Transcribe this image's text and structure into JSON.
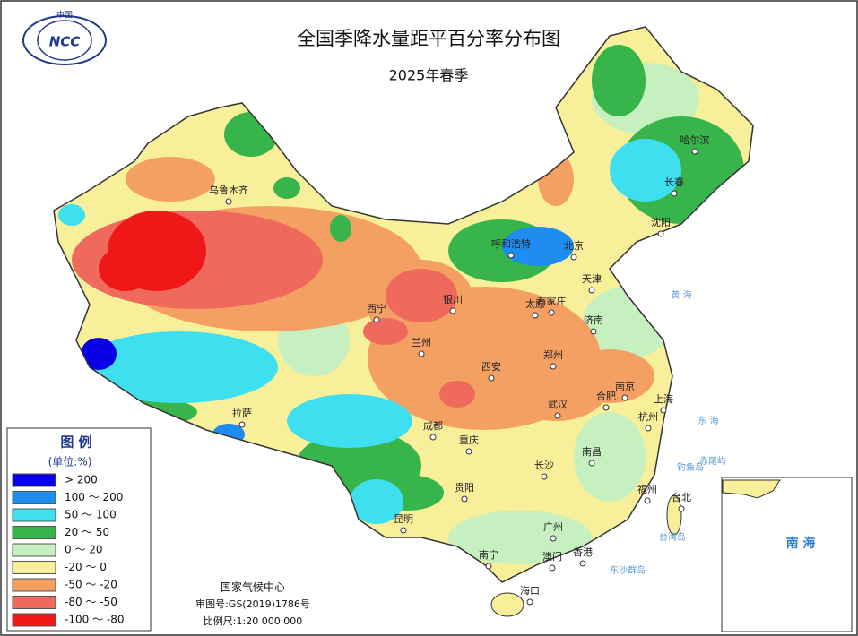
{
  "logo": {
    "text": "中国",
    "abbr": "NCC"
  },
  "header": {
    "title": "全国季降水量距平百分率分布图",
    "subtitle": "2025年春季"
  },
  "legend": {
    "title": "图 例",
    "unit": "(单位:%)",
    "items": [
      {
        "label": "> 200",
        "color": "#0a00e6"
      },
      {
        "label": "100 ～ 200",
        "color": "#1e8cf0"
      },
      {
        "label": "50 ～ 100",
        "color": "#3ee0f0"
      },
      {
        "label": "20 ～ 50",
        "color": "#37b54a"
      },
      {
        "label": "0 ～ 20",
        "color": "#c6f0c0"
      },
      {
        "label": "-20 ～ 0",
        "color": "#f8ef9a"
      },
      {
        "label": "-50 ～ -20",
        "color": "#f4a062"
      },
      {
        "label": "-80 ～ -50",
        "color": "#ef6a5c"
      },
      {
        "label": "-100 ～ -80",
        "color": "#ee1818"
      }
    ]
  },
  "cities": [
    "乌鲁木齐",
    "西宁",
    "兰州",
    "银川",
    "呼和浩特",
    "北京",
    "天津",
    "石家庄",
    "太原",
    "济南",
    "郑州",
    "西安",
    "拉萨",
    "成都",
    "重庆",
    "贵阳",
    "昆明",
    "南宁",
    "广州",
    "澳门",
    "香港",
    "海口",
    "长沙",
    "武汉",
    "南昌",
    "合肥",
    "南京",
    "上海",
    "杭州",
    "福州",
    "台北",
    "沈阳",
    "长春",
    "哈尔滨"
  ],
  "seas": [
    "黄 海",
    "东 海",
    "台湾岛",
    "钓鱼岛",
    "赤尾屿",
    "东沙群岛"
  ],
  "footer": {
    "agency": "国家气候中心",
    "approval": "审图号:GS(2019)1786号",
    "scale": "比例尺:1:20 000 000"
  },
  "inset": {
    "label": "南 海"
  }
}
